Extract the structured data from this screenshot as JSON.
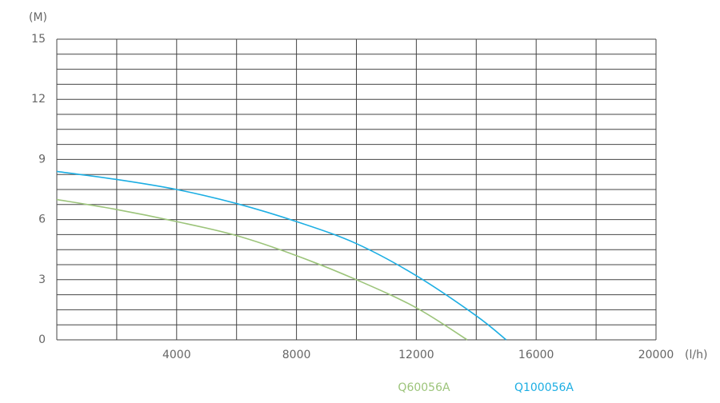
{
  "chart_data": {
    "type": "line",
    "y_unit": "(M)",
    "x_unit": "(l/h)",
    "x": [
      0,
      2000,
      4000,
      6000,
      8000,
      10000,
      12000,
      14000,
      15000
    ],
    "series": [
      {
        "name": "Q60056A",
        "color": "#9cc47a",
        "x": [
          0,
          2000,
          4000,
          6000,
          8000,
          10000,
          12000,
          13700
        ],
        "values": [
          7.0,
          6.5,
          5.9,
          5.2,
          4.2,
          3.0,
          1.6,
          0
        ]
      },
      {
        "name": "Q100056A",
        "color": "#1caee3",
        "x": [
          0,
          2000,
          4000,
          6000,
          8000,
          10000,
          12000,
          14000,
          15000
        ],
        "values": [
          8.4,
          8.0,
          7.5,
          6.8,
          5.9,
          4.8,
          3.2,
          1.2,
          0
        ]
      }
    ],
    "xlim": [
      0,
      20000
    ],
    "xticks": [
      4000,
      8000,
      12000,
      16000,
      20000
    ],
    "ylim": [
      0,
      15
    ],
    "yticks": [
      0,
      3,
      6,
      9,
      12,
      15
    ],
    "xgrid_step": 2000,
    "ygrid_step": 0.75,
    "grid_color": "#444"
  }
}
